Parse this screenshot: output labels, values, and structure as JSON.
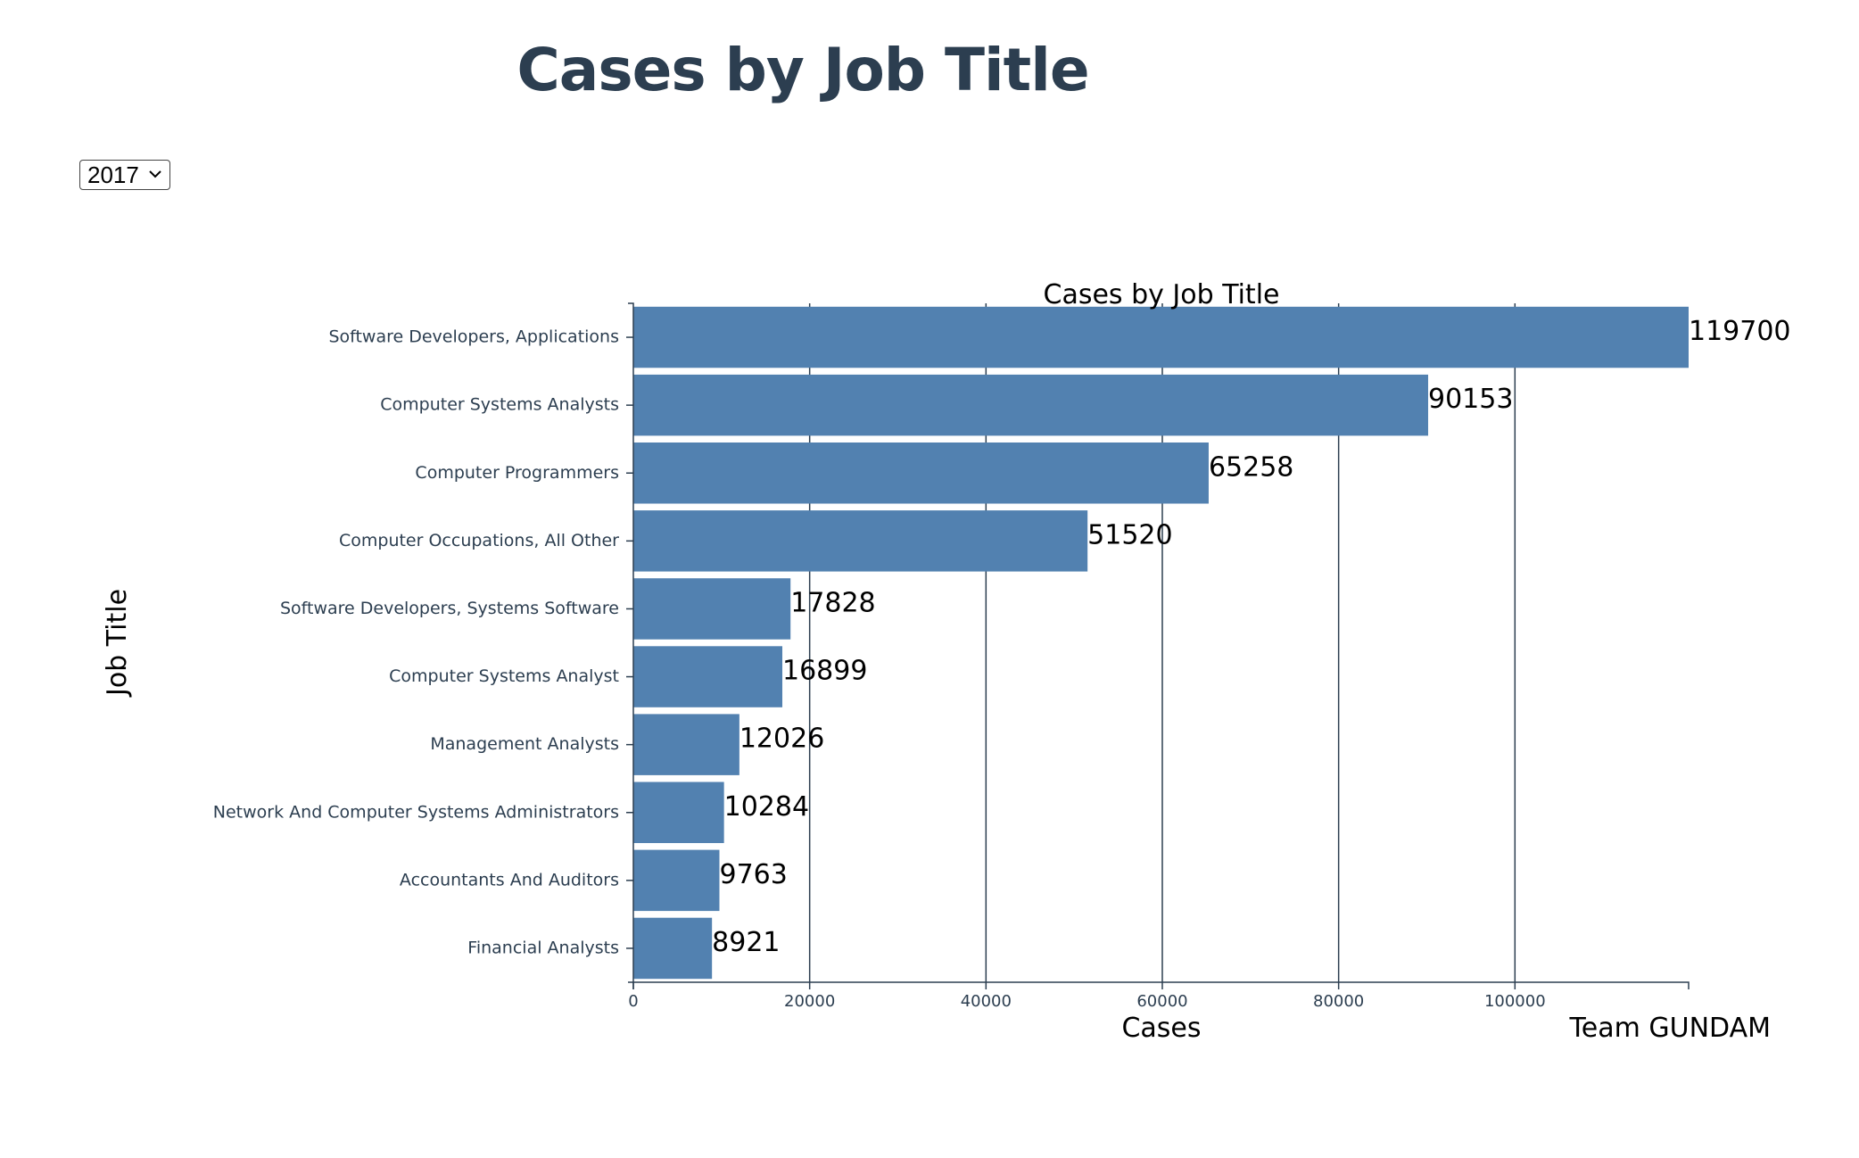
{
  "page": {
    "title": "Cases by Job Title"
  },
  "year_select": {
    "value": "2017",
    "icon": "chevron-down-icon"
  },
  "colors": {
    "bar": "#5281b0",
    "axis": "#2c3e50",
    "title": "#2c3e50"
  },
  "chart_data": {
    "type": "bar",
    "orientation": "horizontal",
    "title": "Cases by Job Title",
    "xlabel": "Cases",
    "ylabel": "Job Title",
    "credit": "Team GUNDAM",
    "categories": [
      "Software Developers, Applications",
      "Computer Systems Analysts",
      "Computer Programmers",
      "Computer Occupations, All Other",
      "Software Developers, Systems Software",
      "Computer Systems Analyst",
      "Management Analysts",
      "Network And Computer Systems Administrators",
      "Accountants And Auditors",
      "Financial Analysts"
    ],
    "values": [
      119700,
      90153,
      65258,
      51520,
      17828,
      16899,
      12026,
      10284,
      9763,
      8921
    ],
    "xlim": [
      0,
      119700
    ],
    "xticks": [
      0,
      20000,
      40000,
      60000,
      80000,
      100000
    ],
    "grid": true,
    "data_labels": true
  }
}
